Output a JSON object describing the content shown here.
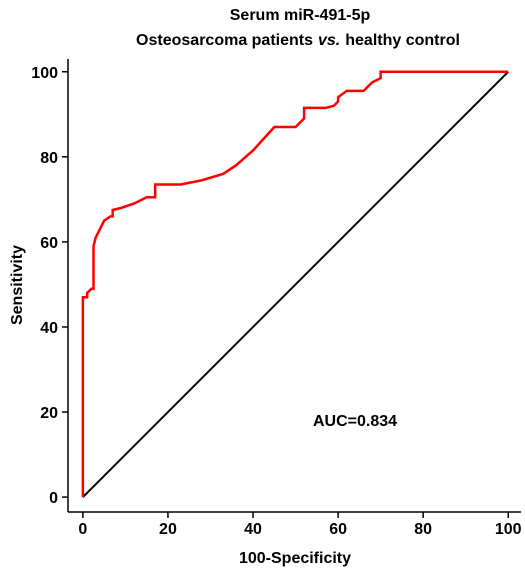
{
  "chart_data": {
    "type": "line",
    "title": "Serum miR-491-5p",
    "subtitle": [
      "Osteosarcoma patients",
      "vs.",
      "healthy control"
    ],
    "xlabel": "100-Specificity",
    "ylabel": "Sensitivity",
    "annotation": "AUC=0.834",
    "xlim": [
      -3.5,
      103
    ],
    "ylim": [
      -3.5,
      103
    ],
    "xticks": [
      0,
      20,
      40,
      60,
      80,
      100
    ],
    "yticks": [
      0,
      20,
      40,
      60,
      80,
      100
    ],
    "diagonal": {
      "color": "#000000",
      "x": [
        0,
        100
      ],
      "values": [
        0,
        100
      ]
    },
    "series": [
      {
        "color": "#ff0000",
        "x": [
          0,
          0,
          1,
          1,
          2,
          2.5,
          2.5,
          3,
          4,
          5,
          6.5,
          7,
          7,
          9,
          12,
          15,
          17,
          17,
          23,
          28,
          33,
          36,
          40,
          45,
          50,
          52,
          52,
          57,
          59,
          60,
          60,
          62,
          66,
          68,
          70,
          70,
          100
        ],
        "values": [
          0,
          47,
          47,
          48,
          49,
          49,
          59,
          61,
          63,
          65,
          66,
          66,
          67.5,
          68,
          69,
          70.5,
          70.5,
          73.5,
          73.5,
          74.5,
          76,
          78,
          81.5,
          87,
          87,
          89,
          91.5,
          91.5,
          92,
          93,
          94,
          95.5,
          95.5,
          97.5,
          98.5,
          100,
          100
        ]
      }
    ]
  }
}
